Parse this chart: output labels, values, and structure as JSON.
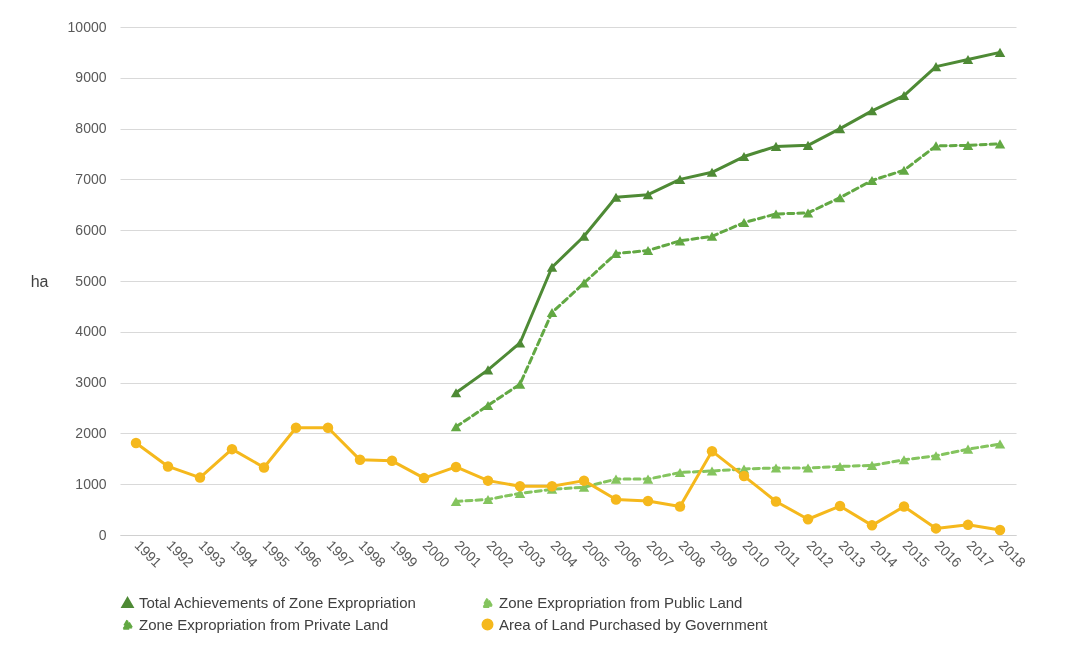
{
  "chart_data": {
    "type": "line",
    "ylabel": "ha",
    "categories": [
      "1991",
      "1992",
      "1993",
      "1994",
      "1995",
      "1996",
      "1997",
      "1998",
      "1999",
      "2000",
      "2001",
      "2002",
      "2003",
      "2004",
      "2005",
      "2006",
      "2007",
      "2008",
      "2009",
      "2010",
      "2011",
      "2012",
      "2013",
      "2014",
      "2015",
      "2016",
      "2017",
      "2018"
    ],
    "ylim": [
      0,
      10000
    ],
    "yticks": [
      0,
      1000,
      2000,
      3000,
      4000,
      5000,
      6000,
      7000,
      8000,
      9000,
      10000
    ],
    "grid": "y",
    "legend": "bottom",
    "series": [
      {
        "name": "Total Achievements of Zone Expropriation",
        "color": "#4e8a35",
        "marker": "triangle",
        "line_style": "solid",
        "values": [
          null,
          null,
          null,
          null,
          null,
          null,
          null,
          null,
          null,
          null,
          2800,
          3250,
          3780,
          5270,
          5880,
          6650,
          6700,
          7000,
          7140,
          7450,
          7650,
          7670,
          8000,
          8350,
          8650,
          9220,
          9360,
          9500
        ]
      },
      {
        "name": "Zone Expropriation from Public Land",
        "color": "#84c45e",
        "marker": "triangle",
        "line_style": "dashed",
        "values": [
          null,
          null,
          null,
          null,
          null,
          null,
          null,
          null,
          null,
          null,
          660,
          700,
          820,
          900,
          940,
          1100,
          1100,
          1230,
          1260,
          1300,
          1320,
          1320,
          1350,
          1370,
          1480,
          1560,
          1690,
          1790
        ]
      },
      {
        "name": "Zone Expropriation from Private Land",
        "color": "#62a843",
        "marker": "triangle",
        "line_style": "dashed",
        "values": [
          null,
          null,
          null,
          null,
          null,
          null,
          null,
          null,
          null,
          null,
          2130,
          2550,
          2970,
          4380,
          4960,
          5540,
          5600,
          5790,
          5880,
          6150,
          6320,
          6340,
          6640,
          6980,
          7180,
          7660,
          7670,
          7700
        ]
      },
      {
        "name": "Area of Land Purchased by Government",
        "color": "#f5b81c",
        "marker": "circle",
        "line_style": "solid",
        "values": [
          1810,
          1350,
          1130,
          1690,
          1330,
          2110,
          2110,
          1480,
          1460,
          1120,
          1340,
          1070,
          960,
          960,
          1070,
          700,
          670,
          560,
          1650,
          1160,
          660,
          310,
          570,
          190,
          560,
          130,
          200,
          100
        ]
      }
    ]
  }
}
